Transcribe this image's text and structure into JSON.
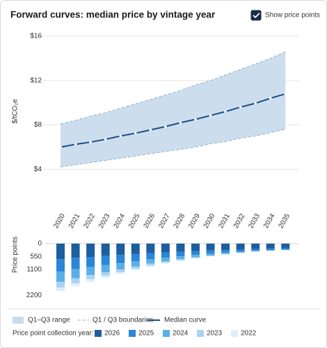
{
  "title": "Forward curves: median price by vintage year",
  "controls": {
    "show_price_points": {
      "label": "Show price points",
      "checked": true
    }
  },
  "chart_data": [
    {
      "type": "line",
      "ylabel": "$/tCO₂e",
      "categories": [
        "2020",
        "2021",
        "2022",
        "2023",
        "2024",
        "2025",
        "2026",
        "2027",
        "2028",
        "2029",
        "2030",
        "2031",
        "2032",
        "2033",
        "2034",
        "2035"
      ],
      "series": [
        {
          "name": "Q1–Q3 range",
          "color": "#c9dbec",
          "upper": [
            8.1,
            8.4,
            8.8,
            9.1,
            9.5,
            9.9,
            10.3,
            10.7,
            11.1,
            11.6,
            12.0,
            12.5,
            13.0,
            13.5,
            14.0,
            14.6
          ],
          "lower": [
            4.2,
            4.4,
            4.6,
            4.8,
            5.0,
            5.2,
            5.4,
            5.6,
            5.8,
            6.0,
            6.3,
            6.5,
            6.8,
            7.0,
            7.3,
            7.6
          ]
        },
        {
          "name": "Q1 / Q3 boundaries",
          "color": "#8fb0cf"
        },
        {
          "name": "Median curve",
          "color": "#174f86",
          "values": [
            6.0,
            6.25,
            6.45,
            6.7,
            7.0,
            7.25,
            7.55,
            7.85,
            8.2,
            8.5,
            8.85,
            9.2,
            9.6,
            9.95,
            10.4,
            10.8
          ]
        }
      ],
      "ylim": [
        0.5,
        16.5
      ],
      "yticks": [
        {
          "value": 4,
          "label": "$4"
        },
        {
          "value": 8,
          "label": "$8"
        },
        {
          "value": 12,
          "label": "$12"
        },
        {
          "value": 16,
          "label": "$16"
        }
      ],
      "grid": true
    },
    {
      "type": "bar",
      "stacked": true,
      "direction": "down",
      "ylabel": "Price points",
      "legend_title": "Price point collection year:",
      "ylim": [
        0,
        2300
      ],
      "yticks": [
        0,
        550,
        1100,
        2200
      ],
      "series": [
        {
          "name": "2026",
          "color": "#1d5e9e",
          "values": [
            650,
            600,
            560,
            520,
            480,
            440,
            400,
            370,
            340,
            310,
            290,
            270,
            250,
            230,
            215,
            200
          ]
        },
        {
          "name": "2025",
          "color": "#2a86d6",
          "values": [
            530,
            480,
            430,
            390,
            350,
            310,
            270,
            230,
            200,
            170,
            140,
            110,
            90,
            70,
            60,
            50
          ]
        },
        {
          "name": "2024",
          "color": "#5aaee8",
          "values": [
            440,
            390,
            340,
            300,
            260,
            220,
            180,
            150,
            120,
            95,
            75,
            55,
            40,
            30,
            25,
            20
          ]
        },
        {
          "name": "2023",
          "color": "#a9d3f2",
          "values": [
            240,
            210,
            180,
            150,
            120,
            100,
            80,
            60,
            45,
            35,
            25,
            20,
            15,
            10,
            8,
            6
          ]
        },
        {
          "name": "2022",
          "color": "#dceefa",
          "values": [
            150,
            130,
            110,
            90,
            70,
            55,
            45,
            35,
            25,
            20,
            15,
            10,
            8,
            6,
            4,
            3
          ]
        }
      ]
    }
  ]
}
